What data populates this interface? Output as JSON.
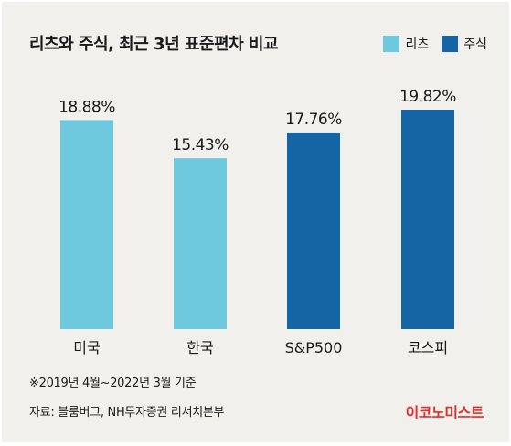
{
  "title": "리츠와 주식, 최근 3년 표준편차 비교",
  "legend": [
    {
      "label": "리츠",
      "color": "#6ec9de"
    },
    {
      "label": "주식",
      "color": "#1565a5"
    }
  ],
  "chart_data": {
    "type": "bar",
    "title": "리츠와 주식, 최근 3년 표준편차 비교",
    "categories": [
      "미국",
      "한국",
      "S&P500",
      "코스피"
    ],
    "values": [
      18.88,
      15.43,
      17.76,
      19.82
    ],
    "value_labels": [
      "18.88%",
      "15.43%",
      "17.76%",
      "19.82%"
    ],
    "groups": [
      "리츠",
      "리츠",
      "주식",
      "주식"
    ],
    "colors": [
      "#6ec9de",
      "#6ec9de",
      "#1565a5",
      "#1565a5"
    ],
    "ylim": [
      0,
      19.82
    ],
    "grid": false,
    "legend_position": "top-right"
  },
  "footnote": "※2019년 4월~2022년 3월 기준",
  "source": "자료: 블룸버그, NH투자증권 리서치본부",
  "brand": {
    "text": "이코노미스트",
    "color": "#d9322f"
  }
}
